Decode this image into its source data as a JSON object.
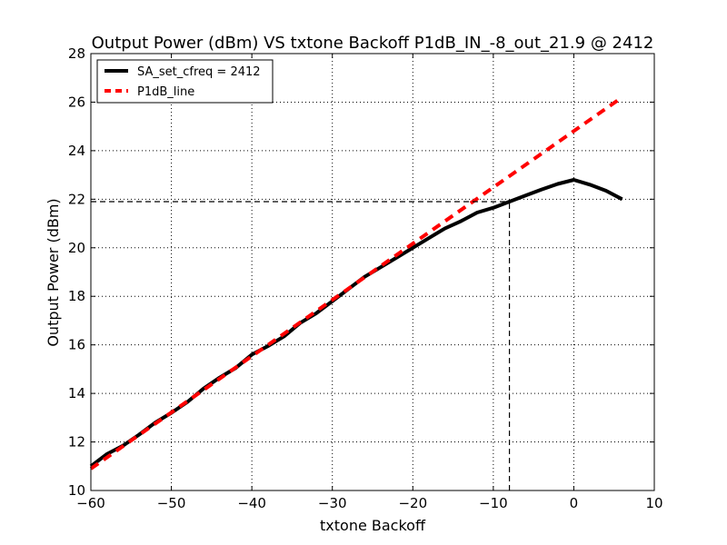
{
  "chart_data": {
    "type": "line",
    "title": "Output Power (dBm) VS txtone Backoff P1dB_IN_-8_out_21.9 @ 2412",
    "xlabel": "txtone Backoff",
    "ylabel": "Output Power (dBm)",
    "xlim": [
      -60,
      10
    ],
    "ylim": [
      10,
      28
    ],
    "xticks": [
      -60,
      -50,
      -40,
      -30,
      -20,
      -10,
      0,
      10
    ],
    "yticks": [
      10,
      12,
      14,
      16,
      18,
      20,
      22,
      24,
      26,
      28
    ],
    "xtick_labels": [
      "−60",
      "−50",
      "−40",
      "−30",
      "−20",
      "−10",
      "0",
      "10"
    ],
    "ytick_labels": [
      "10",
      "12",
      "14",
      "16",
      "18",
      "20",
      "22",
      "24",
      "26",
      "28"
    ],
    "grid": true,
    "legend_position": "top-left",
    "series": [
      {
        "name": "SA_set_cfreq = 2412",
        "color": "#000000",
        "style": "solid",
        "x": [
          -60,
          -58,
          -56,
          -54,
          -52,
          -50,
          -48,
          -46,
          -44,
          -42,
          -40,
          -38,
          -36,
          -34,
          -32,
          -30,
          -28,
          -26,
          -24,
          -22,
          -20,
          -18,
          -16,
          -14,
          -12,
          -10,
          -8,
          -6,
          -4,
          -2,
          0,
          2,
          4,
          6
        ],
        "y": [
          11.0,
          11.5,
          11.85,
          12.3,
          12.8,
          13.2,
          13.65,
          14.2,
          14.65,
          15.05,
          15.6,
          15.95,
          16.35,
          16.9,
          17.3,
          17.8,
          18.3,
          18.8,
          19.2,
          19.6,
          20.0,
          20.4,
          20.8,
          21.1,
          21.45,
          21.65,
          21.9,
          22.15,
          22.4,
          22.63,
          22.8,
          22.6,
          22.35,
          22.0
        ]
      },
      {
        "name": "P1dB_line",
        "color": "#ff0000",
        "style": "dashed",
        "x": [
          -60,
          6
        ],
        "y": [
          10.9,
          26.2
        ]
      }
    ],
    "reference_lines": [
      {
        "orientation": "horizontal",
        "y": 21.9,
        "x_from": -60,
        "x_to": -8
      },
      {
        "orientation": "vertical",
        "x": -8,
        "y_from": 10,
        "y_to": 21.9
      }
    ]
  }
}
